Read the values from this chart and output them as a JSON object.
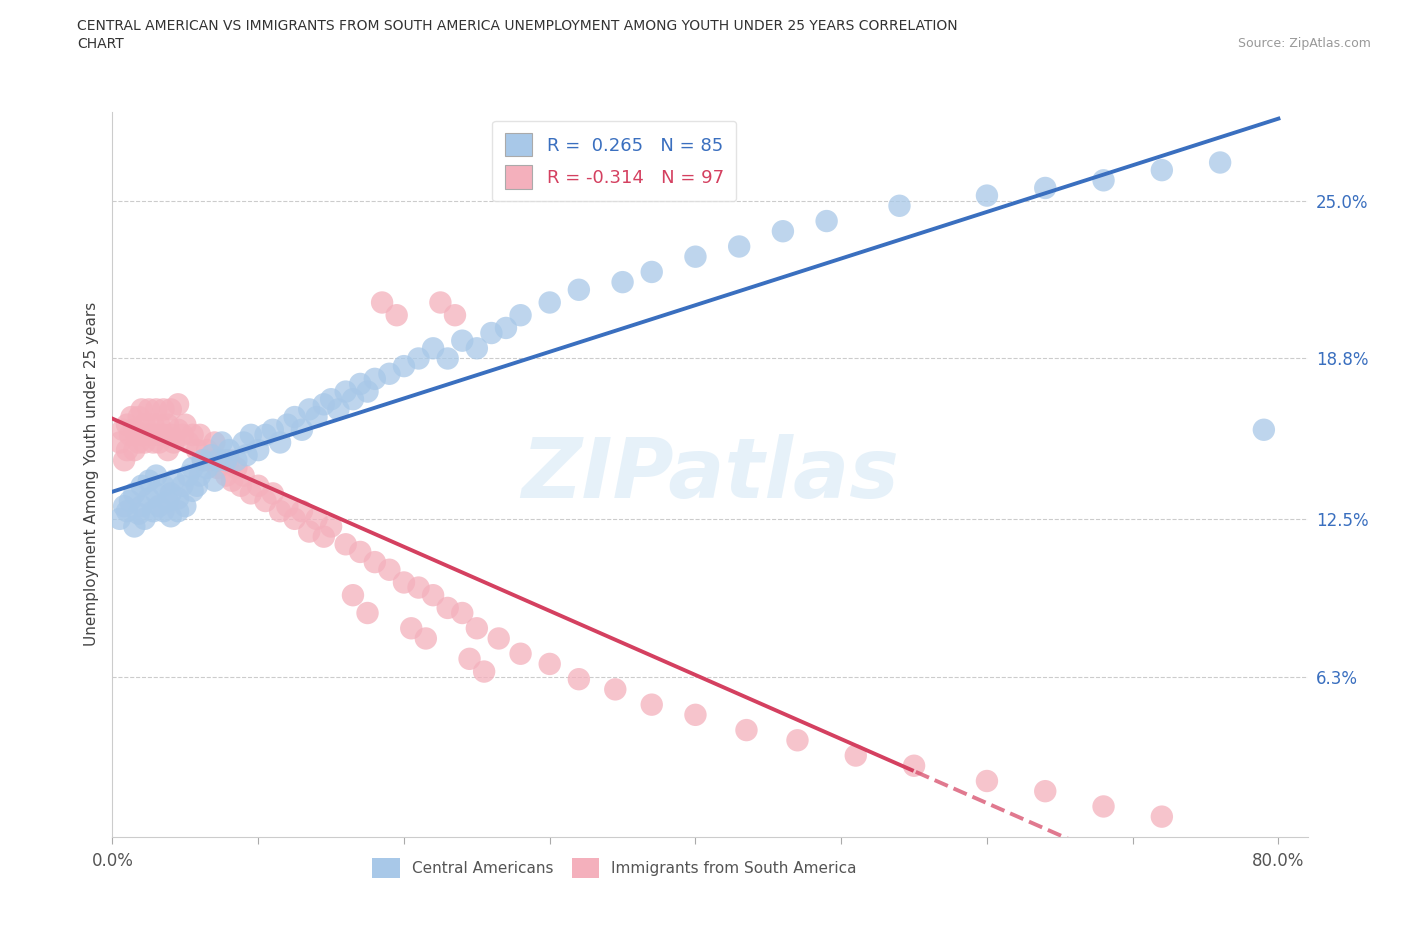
{
  "title_line1": "CENTRAL AMERICAN VS IMMIGRANTS FROM SOUTH AMERICA UNEMPLOYMENT AMONG YOUTH UNDER 25 YEARS CORRELATION",
  "title_line2": "CHART",
  "source_text": "Source: ZipAtlas.com",
  "ylabel": "Unemployment Among Youth under 25 years",
  "xlim": [
    0.0,
    0.82
  ],
  "ylim": [
    0.0,
    0.285
  ],
  "ytick_positions": [
    0.0,
    0.063,
    0.125,
    0.188,
    0.25
  ],
  "ytick_labels": [
    "",
    "6.3%",
    "12.5%",
    "18.8%",
    "25.0%"
  ],
  "xtick_positions": [
    0.0,
    0.1,
    0.2,
    0.3,
    0.4,
    0.5,
    0.6,
    0.7,
    0.8
  ],
  "xtick_labels": [
    "0.0%",
    "",
    "",
    "",
    "",
    "",
    "",
    "",
    "80.0%"
  ],
  "blue_fill_color": "#a8c8e8",
  "pink_fill_color": "#f4b0bc",
  "blue_line_color": "#3a6fbf",
  "pink_line_color": "#d44060",
  "R_blue": 0.265,
  "N_blue": 85,
  "R_pink": -0.314,
  "N_pink": 97,
  "legend_label_blue": "Central Americans",
  "legend_label_pink": "Immigrants from South America",
  "watermark": "ZIPatlas",
  "grid_color": "#cccccc",
  "background_color": "#ffffff",
  "title_color": "#333333",
  "source_color": "#999999",
  "blue_scatter_x": [
    0.005,
    0.008,
    0.01,
    0.012,
    0.015,
    0.015,
    0.018,
    0.02,
    0.02,
    0.022,
    0.025,
    0.025,
    0.028,
    0.03,
    0.03,
    0.032,
    0.035,
    0.035,
    0.038,
    0.04,
    0.04,
    0.042,
    0.045,
    0.045,
    0.048,
    0.05,
    0.052,
    0.055,
    0.055,
    0.058,
    0.06,
    0.062,
    0.065,
    0.068,
    0.07,
    0.072,
    0.075,
    0.078,
    0.08,
    0.085,
    0.09,
    0.092,
    0.095,
    0.1,
    0.105,
    0.11,
    0.115,
    0.12,
    0.125,
    0.13,
    0.135,
    0.14,
    0.145,
    0.15,
    0.155,
    0.16,
    0.165,
    0.17,
    0.175,
    0.18,
    0.19,
    0.2,
    0.21,
    0.22,
    0.23,
    0.24,
    0.25,
    0.26,
    0.27,
    0.28,
    0.3,
    0.32,
    0.35,
    0.37,
    0.4,
    0.43,
    0.46,
    0.49,
    0.54,
    0.6,
    0.64,
    0.68,
    0.72,
    0.76,
    0.79
  ],
  "blue_scatter_y": [
    0.125,
    0.13,
    0.128,
    0.132,
    0.122,
    0.135,
    0.127,
    0.13,
    0.138,
    0.125,
    0.133,
    0.14,
    0.128,
    0.135,
    0.142,
    0.13,
    0.128,
    0.138,
    0.132,
    0.126,
    0.135,
    0.14,
    0.128,
    0.133,
    0.138,
    0.13,
    0.142,
    0.136,
    0.145,
    0.138,
    0.142,
    0.148,
    0.145,
    0.15,
    0.14,
    0.148,
    0.155,
    0.148,
    0.152,
    0.148,
    0.155,
    0.15,
    0.158,
    0.152,
    0.158,
    0.16,
    0.155,
    0.162,
    0.165,
    0.16,
    0.168,
    0.165,
    0.17,
    0.172,
    0.168,
    0.175,
    0.172,
    0.178,
    0.175,
    0.18,
    0.182,
    0.185,
    0.188,
    0.192,
    0.188,
    0.195,
    0.192,
    0.198,
    0.2,
    0.205,
    0.21,
    0.215,
    0.218,
    0.222,
    0.228,
    0.232,
    0.238,
    0.242,
    0.248,
    0.252,
    0.255,
    0.258,
    0.262,
    0.265,
    0.16
  ],
  "pink_scatter_x": [
    0.005,
    0.007,
    0.008,
    0.01,
    0.01,
    0.012,
    0.013,
    0.015,
    0.015,
    0.018,
    0.018,
    0.02,
    0.02,
    0.022,
    0.022,
    0.025,
    0.025,
    0.028,
    0.028,
    0.03,
    0.03,
    0.032,
    0.032,
    0.035,
    0.035,
    0.038,
    0.038,
    0.04,
    0.04,
    0.042,
    0.045,
    0.045,
    0.048,
    0.05,
    0.052,
    0.055,
    0.058,
    0.06,
    0.062,
    0.065,
    0.068,
    0.07,
    0.072,
    0.075,
    0.078,
    0.08,
    0.082,
    0.085,
    0.088,
    0.09,
    0.095,
    0.1,
    0.105,
    0.11,
    0.115,
    0.12,
    0.125,
    0.13,
    0.135,
    0.14,
    0.145,
    0.15,
    0.16,
    0.17,
    0.18,
    0.19,
    0.2,
    0.21,
    0.22,
    0.23,
    0.24,
    0.25,
    0.265,
    0.28,
    0.3,
    0.32,
    0.345,
    0.37,
    0.4,
    0.435,
    0.47,
    0.51,
    0.55,
    0.6,
    0.64,
    0.68,
    0.72,
    0.165,
    0.175,
    0.185,
    0.195,
    0.205,
    0.215,
    0.225,
    0.235,
    0.245,
    0.255
  ],
  "pink_scatter_y": [
    0.155,
    0.16,
    0.148,
    0.152,
    0.162,
    0.158,
    0.165,
    0.152,
    0.16,
    0.155,
    0.165,
    0.158,
    0.168,
    0.155,
    0.162,
    0.158,
    0.168,
    0.155,
    0.162,
    0.158,
    0.168,
    0.155,
    0.162,
    0.158,
    0.168,
    0.152,
    0.162,
    0.158,
    0.168,
    0.155,
    0.16,
    0.17,
    0.158,
    0.162,
    0.155,
    0.158,
    0.152,
    0.158,
    0.148,
    0.152,
    0.148,
    0.155,
    0.145,
    0.148,
    0.142,
    0.148,
    0.14,
    0.145,
    0.138,
    0.142,
    0.135,
    0.138,
    0.132,
    0.135,
    0.128,
    0.13,
    0.125,
    0.128,
    0.12,
    0.125,
    0.118,
    0.122,
    0.115,
    0.112,
    0.108,
    0.105,
    0.1,
    0.098,
    0.095,
    0.09,
    0.088,
    0.082,
    0.078,
    0.072,
    0.068,
    0.062,
    0.058,
    0.052,
    0.048,
    0.042,
    0.038,
    0.032,
    0.028,
    0.022,
    0.018,
    0.012,
    0.008,
    0.095,
    0.088,
    0.21,
    0.205,
    0.082,
    0.078,
    0.21,
    0.205,
    0.07,
    0.065
  ]
}
